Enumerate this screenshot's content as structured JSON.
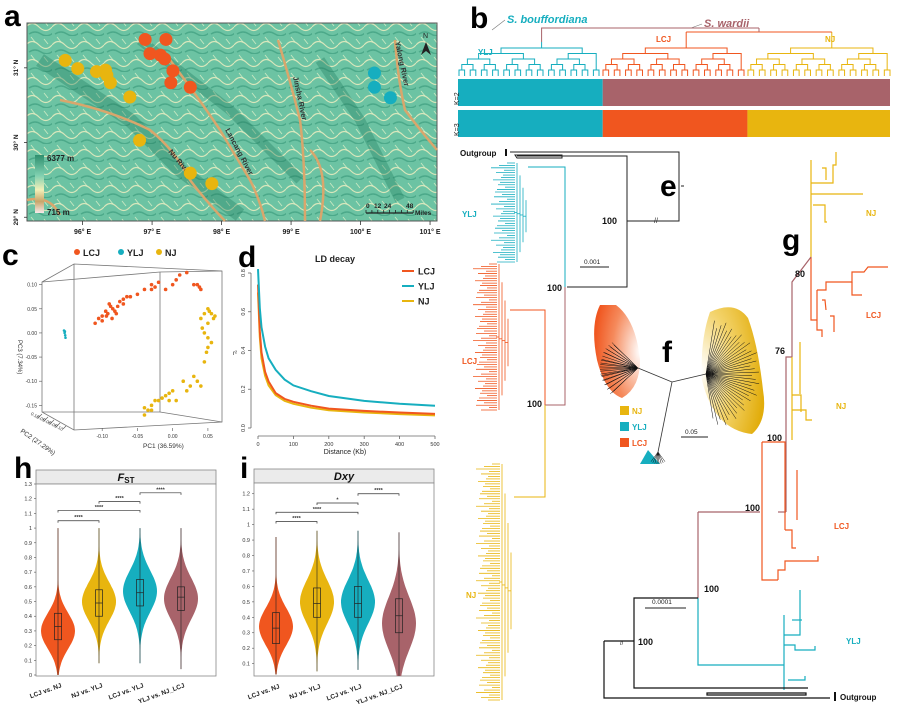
{
  "figure_letters": {
    "a": "a",
    "b": "b",
    "c": "c",
    "d": "d",
    "e": "e",
    "f": "f",
    "g": "g",
    "h": "h",
    "i": "i"
  },
  "colors": {
    "LCJ": "#f0561f",
    "YLJ": "#16aebf",
    "NJ": "#e8b50f",
    "wardii": "#a8636a",
    "black": "#222222"
  },
  "chart_data": [
    {
      "panel": "a",
      "type": "scatter",
      "title": "Sampling map",
      "xlabel": "",
      "ylabel": "",
      "x_ticks": [
        "96° E",
        "97° E",
        "98° E",
        "99° E",
        "100° E",
        "101° E"
      ],
      "y_ticks": [
        "31° N",
        "30° N",
        "29° N"
      ],
      "xlim": [
        95.2,
        101.1
      ],
      "ylim": [
        28.95,
        31.6
      ],
      "legend": {
        "max_label": "6377 m",
        "min_label": "715 m"
      },
      "rivers": [
        "Nu River",
        "Lancang River",
        "Jinsha River",
        "Yalong River"
      ],
      "scale_bar": {
        "ticks": [
          "0",
          "12",
          "24",
          "48"
        ],
        "unit": "Miles"
      },
      "north_label": "N",
      "series": [
        {
          "name": "LCJ",
          "points": [
            [
              96.9,
              31.38
            ],
            [
              97.2,
              31.38
            ],
            [
              96.97,
              31.19
            ],
            [
              97.12,
              31.17
            ],
            [
              97.18,
              31.12
            ],
            [
              97.3,
              30.96
            ],
            [
              97.27,
              30.8
            ],
            [
              97.55,
              30.74
            ]
          ]
        },
        {
          "name": "NJ",
          "points": [
            [
              95.75,
              31.1
            ],
            [
              95.93,
              30.99
            ],
            [
              96.2,
              30.95
            ],
            [
              96.33,
              30.97
            ],
            [
              96.35,
              30.9
            ],
            [
              96.4,
              30.8
            ],
            [
              96.68,
              30.61
            ],
            [
              96.82,
              30.03
            ],
            [
              97.55,
              29.59
            ],
            [
              97.86,
              29.45
            ]
          ]
        },
        {
          "name": "YLJ",
          "points": [
            [
              100.2,
              30.93
            ],
            [
              100.2,
              30.74
            ],
            [
              100.43,
              30.6
            ]
          ]
        }
      ]
    },
    {
      "panel": "c",
      "type": "scatter",
      "title": "PCA",
      "xlabel": "PC1 (36.59%)",
      "ylabel": "PC3 (7.34%)",
      "zlabel": "PC2 (27.29%)",
      "y_ticks": [
        "0.10",
        "0.05",
        "0.00",
        "-0.05",
        "-0.10",
        "-0.15"
      ],
      "x_ticks": [
        "-0.10",
        "-0.05",
        "0.00",
        "0.05"
      ],
      "z_ticks": [
        "0.10",
        "0.05",
        "0.00",
        "-0.05",
        "-0.10"
      ],
      "ylim": [
        -0.17,
        0.12
      ],
      "xlim": [
        -0.14,
        0.07
      ],
      "legend_position": "top",
      "series": [
        {
          "name": "LCJ",
          "points": [
            [
              -0.11,
              0.02
            ],
            [
              -0.105,
              0.03
            ],
            [
              -0.1,
              0.035
            ],
            [
              -0.095,
              0.045
            ],
            [
              -0.09,
              0.06
            ],
            [
              -0.085,
              0.05
            ],
            [
              -0.08,
              0.04
            ],
            [
              -0.078,
              0.055
            ],
            [
              -0.075,
              0.065
            ],
            [
              -0.07,
              0.07
            ],
            [
              -0.06,
              0.075
            ],
            [
              -0.05,
              0.08
            ],
            [
              -0.04,
              0.09
            ],
            [
              -0.03,
              0.1
            ],
            [
              -0.025,
              0.095
            ],
            [
              -0.02,
              0.105
            ],
            [
              -0.01,
              0.09
            ],
            [
              0.0,
              0.1
            ],
            [
              0.005,
              0.11
            ],
            [
              0.01,
              0.12
            ],
            [
              0.02,
              0.125
            ],
            [
              0.035,
              0.1
            ],
            [
              0.04,
              0.09
            ],
            [
              -0.1,
              0.025
            ],
            [
              -0.092,
              0.04
            ],
            [
              -0.086,
              0.03
            ],
            [
              -0.082,
              0.045
            ],
            [
              -0.088,
              0.055
            ],
            [
              -0.094,
              0.035
            ],
            [
              -0.07,
              0.06
            ],
            [
              -0.065,
              0.075
            ],
            [
              -0.03,
              0.09
            ],
            [
              0.03,
              0.1
            ],
            [
              0.038,
              0.095
            ]
          ]
        },
        {
          "name": "YLJ",
          "points": [
            [
              -0.19,
              0.005
            ],
            [
              -0.188,
              0.0
            ],
            [
              -0.186,
              -0.005
            ],
            [
              -0.185,
              -0.01
            ],
            [
              -0.187,
              0.003
            ]
          ]
        },
        {
          "name": "NJ",
          "points": [
            [
              0.04,
              0.03
            ],
            [
              0.045,
              0.04
            ],
            [
              0.05,
              0.05
            ],
            [
              0.055,
              0.04
            ],
            [
              0.06,
              0.035
            ],
            [
              0.05,
              0.02
            ],
            [
              0.045,
              0.0
            ],
            [
              0.05,
              -0.01
            ],
            [
              0.055,
              -0.02
            ],
            [
              0.048,
              -0.04
            ],
            [
              0.045,
              -0.06
            ],
            [
              0.03,
              -0.09
            ],
            [
              0.035,
              -0.1
            ],
            [
              0.04,
              -0.11
            ],
            [
              0.025,
              -0.11
            ],
            [
              0.015,
              -0.1
            ],
            [
              0.0,
              -0.12
            ],
            [
              -0.01,
              -0.13
            ],
            [
              -0.02,
              -0.14
            ],
            [
              -0.03,
              -0.15
            ],
            [
              -0.035,
              -0.16
            ],
            [
              -0.04,
              -0.17
            ],
            [
              -0.025,
              -0.14
            ],
            [
              -0.015,
              -0.135
            ],
            [
              -0.005,
              -0.125
            ],
            [
              0.005,
              -0.14
            ],
            [
              -0.03,
              -0.16
            ],
            [
              -0.04,
              -0.155
            ],
            [
              0.052,
              0.045
            ],
            [
              0.058,
              0.03
            ],
            [
              0.042,
              0.01
            ],
            [
              0.05,
              -0.03
            ],
            [
              0.02,
              -0.12
            ],
            [
              -0.005,
              -0.14
            ]
          ]
        }
      ]
    },
    {
      "panel": "d",
      "type": "line",
      "title": "LD decay",
      "xlabel": "Distance (Kb)",
      "ylabel": "r²",
      "xlim": [
        0,
        500
      ],
      "ylim": [
        0,
        0.8
      ],
      "x_ticks": [
        0,
        100,
        200,
        300,
        400,
        500
      ],
      "y_ticks": [
        0.0,
        0.2,
        0.4,
        0.6,
        0.8
      ],
      "legend_position": "top-right",
      "series": [
        {
          "name": "LCJ",
          "x": [
            0,
            5,
            10,
            20,
            30,
            50,
            75,
            100,
            150,
            200,
            300,
            400,
            500
          ],
          "y": [
            0.74,
            0.5,
            0.39,
            0.29,
            0.24,
            0.18,
            0.15,
            0.135,
            0.115,
            0.1,
            0.088,
            0.08,
            0.073
          ]
        },
        {
          "name": "YLJ",
          "x": [
            0,
            5,
            10,
            20,
            30,
            50,
            75,
            100,
            150,
            200,
            300,
            400,
            500
          ],
          "y": [
            0.82,
            0.62,
            0.52,
            0.42,
            0.36,
            0.3,
            0.25,
            0.22,
            0.19,
            0.165,
            0.14,
            0.125,
            0.115
          ]
        },
        {
          "name": "NJ",
          "x": [
            0,
            5,
            10,
            20,
            30,
            50,
            75,
            100,
            150,
            200,
            300,
            400,
            500
          ],
          "y": [
            0.7,
            0.47,
            0.36,
            0.27,
            0.22,
            0.17,
            0.14,
            0.125,
            0.105,
            0.092,
            0.08,
            0.072,
            0.065
          ]
        }
      ]
    },
    {
      "panel": "h",
      "type": "violin",
      "title": "FST",
      "title_main": "F",
      "title_sub": "ST",
      "ylim": [
        0,
        1.3
      ],
      "y_ticks": [
        "0",
        "0.1",
        "0.2",
        "0.3",
        "0.4",
        "0.5",
        "0.6",
        "0.7",
        "0.8",
        "0.9",
        "1",
        "1.1",
        "1.2",
        "1.3"
      ],
      "categories": [
        "LCJ vs. NJ",
        "NJ vs. YLJ",
        "LCJ vs. YLJ",
        "YLJ vs. NJ_LCJ"
      ],
      "series": [
        {
          "name": "LCJ vs. NJ",
          "color_key": "LCJ",
          "min": 0.0,
          "max": 1.0,
          "q1": 0.24,
          "median": 0.33,
          "q3": 0.42,
          "mode": 0.3,
          "spread": 0.12
        },
        {
          "name": "NJ vs. YLJ",
          "color_key": "NJ",
          "min": 0.08,
          "max": 1.0,
          "q1": 0.4,
          "median": 0.49,
          "q3": 0.58,
          "mode": 0.5,
          "spread": 0.13
        },
        {
          "name": "LCJ vs. YLJ",
          "color_key": "YLJ",
          "min": 0.08,
          "max": 1.0,
          "q1": 0.47,
          "median": 0.56,
          "q3": 0.65,
          "mode": 0.57,
          "spread": 0.14
        },
        {
          "name": "YLJ vs. NJ_LCJ",
          "color_key": "wardii",
          "min": 0.04,
          "max": 1.0,
          "q1": 0.44,
          "median": 0.53,
          "q3": 0.6,
          "mode": 0.52,
          "spread": 0.14
        }
      ],
      "significance": [
        {
          "from": 0,
          "to": 1,
          "y": 1.05,
          "label": "****"
        },
        {
          "from": 0,
          "to": 2,
          "y": 1.12,
          "label": "****"
        },
        {
          "from": 1,
          "to": 2,
          "y": 1.18,
          "label": "****"
        },
        {
          "from": 2,
          "to": 3,
          "y": 1.24,
          "label": "****"
        }
      ]
    },
    {
      "panel": "i",
      "type": "violin",
      "title": "Dxy",
      "ylim": [
        0.02,
        1.25
      ],
      "y_ticks": [
        "0.1",
        "0.2",
        "0.3",
        "0.4",
        "0.5",
        "0.6",
        "0.7",
        "0.8",
        "0.9",
        "1",
        "1.1",
        "1.2"
      ],
      "categories": [
        "LCJ vs. NJ",
        "NJ vs. YLJ",
        "LCJ vs. YLJ",
        "YLJ vs. NJ_LCJ"
      ],
      "series": [
        {
          "name": "LCJ vs. NJ",
          "color_key": "LCJ",
          "min": 0.03,
          "max": 0.92,
          "q1": 0.23,
          "median": 0.33,
          "q3": 0.43,
          "mode": 0.34,
          "spread": 0.12
        },
        {
          "name": "NJ vs. YLJ",
          "color_key": "NJ",
          "min": 0.05,
          "max": 0.96,
          "q1": 0.4,
          "median": 0.49,
          "q3": 0.59,
          "mode": 0.5,
          "spread": 0.14
        },
        {
          "name": "LCJ vs. YLJ",
          "color_key": "YLJ",
          "min": 0.06,
          "max": 0.96,
          "q1": 0.4,
          "median": 0.49,
          "q3": 0.6,
          "mode": 0.5,
          "spread": 0.14
        },
        {
          "name": "YLJ vs. NJ_LCJ",
          "color_key": "wardii",
          "min": 0.02,
          "max": 0.95,
          "q1": 0.3,
          "median": 0.41,
          "q3": 0.52,
          "mode": 0.36,
          "spread": 0.17
        }
      ],
      "significance": [
        {
          "from": 0,
          "to": 1,
          "y": 1.02,
          "label": "****"
        },
        {
          "from": 0,
          "to": 2,
          "y": 1.08,
          "label": "****"
        },
        {
          "from": 1,
          "to": 2,
          "y": 1.14,
          "label": "*"
        },
        {
          "from": 2,
          "to": 3,
          "y": 1.2,
          "label": "****"
        }
      ]
    }
  ],
  "panel_b": {
    "species_left": "S. bouffordiana",
    "species_right": "S. wardii",
    "clade_labels": [
      "YLJ",
      "LCJ",
      "NJ"
    ],
    "row_labels": [
      "K=2",
      "K=3"
    ],
    "k2_segments": [
      {
        "group": "YLJ",
        "fraction": 0.335
      },
      {
        "group": "wardii",
        "fraction": 0.665
      }
    ],
    "k3_segments": [
      {
        "group": "YLJ",
        "fraction": 0.335
      },
      {
        "group": "LCJ",
        "fraction": 0.335
      },
      {
        "group": "NJ",
        "fraction": 0.33
      }
    ],
    "leaf_counts": {
      "YLJ": 26,
      "LCJ": 26,
      "NJ": 26
    }
  },
  "panel_e": {
    "outgroup_label": "Outgroup",
    "clade_labels": [
      "YLJ",
      "LCJ",
      "NJ"
    ],
    "support_values": [
      "100",
      "100",
      "100"
    ],
    "scale_label": "0.001"
  },
  "panel_f": {
    "legend": [
      "NJ",
      "YLJ",
      "LCJ"
    ],
    "scale_label": "0.05"
  },
  "panel_g": {
    "outgroup_label": "Outgroup",
    "clade_labels": [
      "NJ",
      "LCJ",
      "NJ",
      "LCJ",
      "YLJ"
    ],
    "support_values": [
      "80",
      "76",
      "100",
      "100",
      "100",
      "100"
    ],
    "scale_label": "0.0001"
  }
}
